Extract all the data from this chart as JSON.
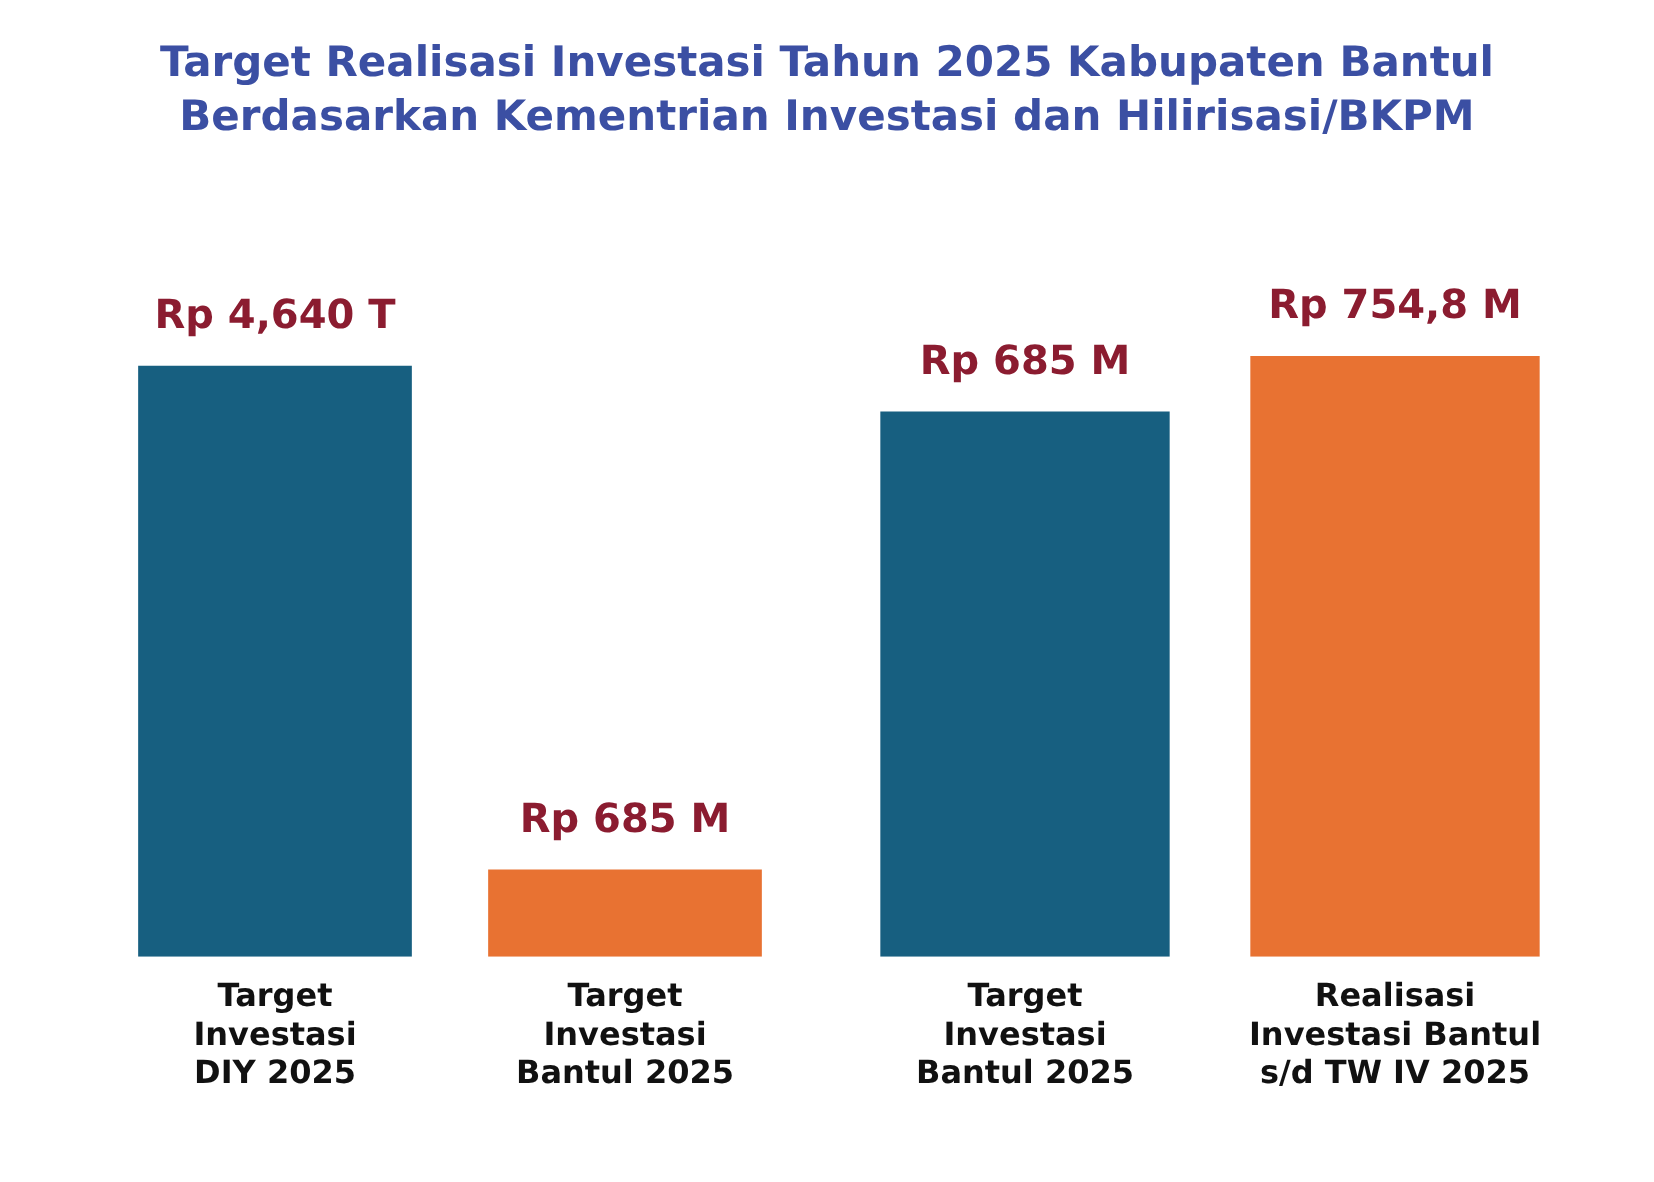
{
  "chart_data": [
    {
      "type": "bar",
      "title": "Target Realisasi Investasi Tahun 2025 Kabupaten Bantul Berdasarkan Kementrian Investasi dan Hilirisasi/BKPM",
      "categories": [
        "Target\nInvestasi\nDIY 2025",
        "Target\nInvestasi\nBantul 2025"
      ],
      "values": [
        4640,
        685
      ],
      "value_labels": [
        "Rp 4,640 T",
        "Rp 685 M"
      ],
      "colors": [
        "#175f80",
        "#e87232"
      ]
    },
    {
      "type": "bar",
      "categories": [
        "Target\nInvestasi\nBantul 2025",
        "Realisasi\nInvestasi Bantul\ns/d TW IV 2025"
      ],
      "values": [
        685,
        754.8
      ],
      "value_labels": [
        "Rp 685 M",
        "Rp 754,8 M"
      ],
      "colors": [
        "#175f80",
        "#e87232"
      ]
    }
  ]
}
